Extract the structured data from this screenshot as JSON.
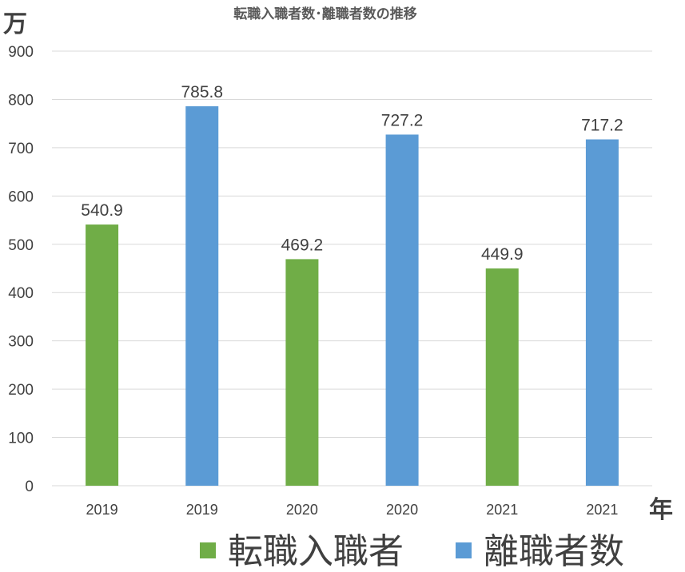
{
  "chart_data": {
    "type": "bar",
    "title": "転職入職者数･離職者数の推移",
    "ylabel": "万",
    "xlabel": "年",
    "ylim": [
      0,
      900
    ],
    "yticks": [
      0,
      100,
      200,
      300,
      400,
      500,
      600,
      700,
      800,
      900
    ],
    "categories": [
      "2019",
      "2019",
      "2020",
      "2020",
      "2021",
      "2021"
    ],
    "bars": [
      {
        "category": "2019",
        "series": "転職入職者",
        "value": 540.9,
        "label": "540.9"
      },
      {
        "category": "2019",
        "series": "離職者数",
        "value": 785.8,
        "label": "785.8"
      },
      {
        "category": "2020",
        "series": "転職入職者",
        "value": 469.2,
        "label": "469.2"
      },
      {
        "category": "2020",
        "series": "離職者数",
        "value": 727.2,
        "label": "727.2"
      },
      {
        "category": "2021",
        "series": "転職入職者",
        "value": 449.9,
        "label": "449.9"
      },
      {
        "category": "2021",
        "series": "離職者数",
        "value": 717.2,
        "label": "717.2"
      }
    ],
    "series": [
      {
        "name": "転職入職者",
        "color": "#70ad47"
      },
      {
        "name": "離職者数",
        "color": "#5b9bd5"
      }
    ],
    "grid": true,
    "legend": "bottom"
  }
}
